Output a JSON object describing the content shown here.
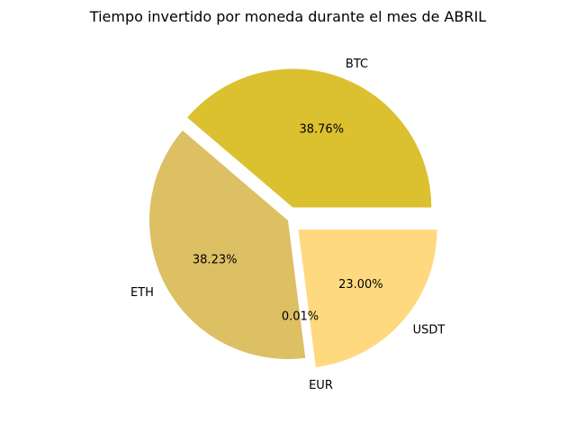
{
  "chart_data": {
    "type": "pie",
    "title": "Tiempo invertido por moneda durante el mes de ABRIL",
    "slices": [
      {
        "label": "BTC",
        "value": 38.76,
        "percent_label": "38.76%",
        "color": "#dbc12f",
        "exploded": true
      },
      {
        "label": "ETH",
        "value": 38.23,
        "percent_label": "38.23%",
        "color": "#ddbf64",
        "exploded": false
      },
      {
        "label": "EUR",
        "value": 0.01,
        "percent_label": "0.01%",
        "color": "#d8c27a",
        "exploded": true
      },
      {
        "label": "USDT",
        "value": 23.0,
        "percent_label": "23.00%",
        "color": "#fed97f",
        "exploded": true
      }
    ],
    "start_angle_deg": 0,
    "direction": "counterclockwise",
    "legend": "none"
  }
}
